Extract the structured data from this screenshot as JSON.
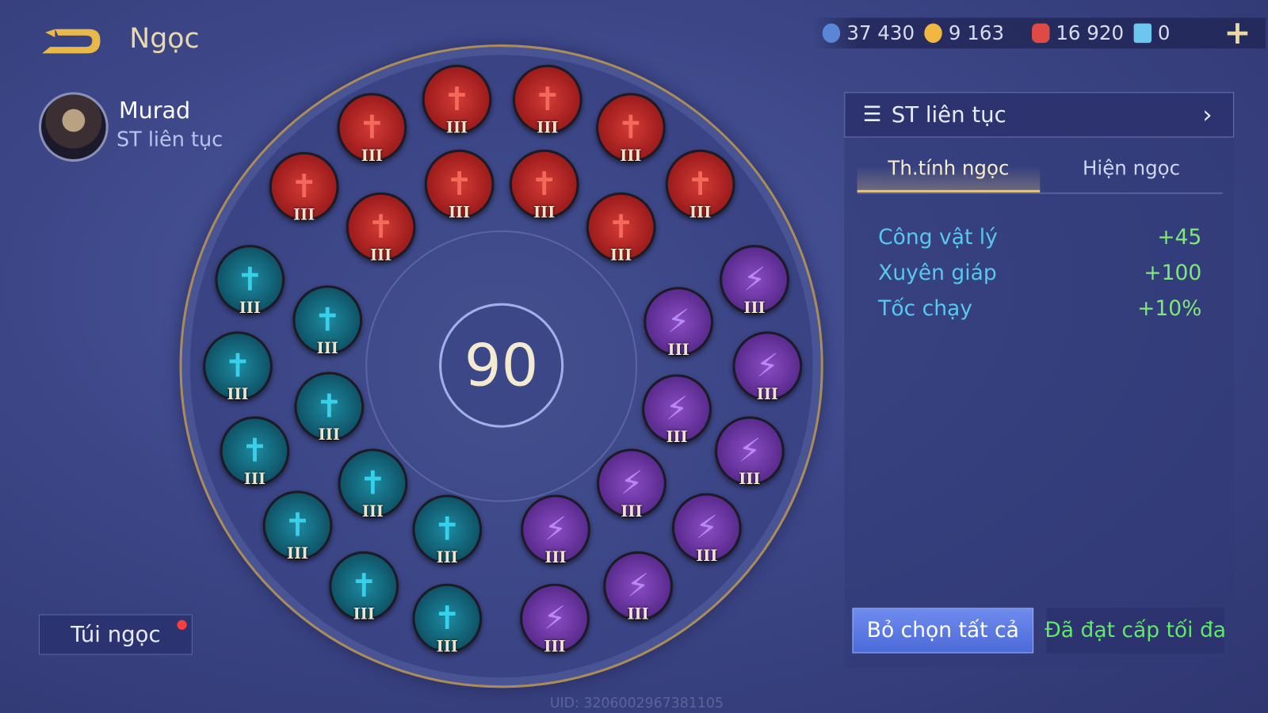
{
  "header": {
    "title": "Ngọc",
    "back_icon": "back-arrow-icon"
  },
  "hero": {
    "name": "Murad",
    "set_name": "ST liên tục"
  },
  "currency": [
    {
      "icon": "blue-gem-currency-icon",
      "value": "37 430",
      "color": "#5a86d8"
    },
    {
      "icon": "gold-coin-icon",
      "value": "9 163",
      "color": "#f0b840"
    },
    {
      "icon": "red-crystal-icon",
      "value": "16 920",
      "color": "#e04a44"
    },
    {
      "icon": "card-voucher-icon",
      "value": "0",
      "color": "#6cc6ee"
    }
  ],
  "add_label": "+",
  "center_level": "90",
  "gems": {
    "red": {
      "count": 10,
      "level": "III",
      "icon": "sword-icon"
    },
    "teal": {
      "count": 10,
      "level": "III",
      "icon": "sword-icon"
    },
    "purple": {
      "count": 10,
      "level": "III",
      "icon": "lightning-icon"
    }
  },
  "bag_label": "Túi ngọc",
  "panel": {
    "set_selector": "ST liên tục",
    "tabs": [
      {
        "label": "Th.tính ngọc",
        "active": true
      },
      {
        "label": "Hiện ngọc",
        "active": false
      }
    ],
    "stats": [
      {
        "name": "Công vật lý",
        "value": "+45"
      },
      {
        "name": "Xuyên giáp",
        "value": "+100"
      },
      {
        "name": "Tốc chạy",
        "value": "+10%"
      }
    ],
    "clear_label": "Bỏ chọn tất cả",
    "max_label": "Đã đạt cấp tối đa"
  },
  "uid": "UID: 3206002967381105"
}
